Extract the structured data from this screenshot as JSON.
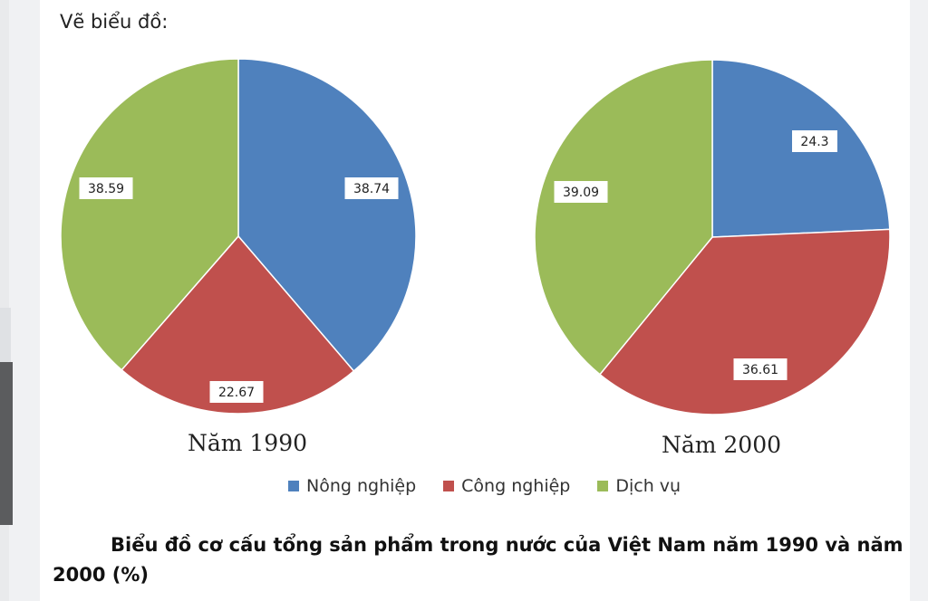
{
  "intro_text": "Vẽ biểu đồ:",
  "caption": "Biểu đồ cơ cấu tổng sản phẩm trong nước của Việt Nam năm 1990 và năm 2000 (%)",
  "legend": [
    {
      "label": "Nông nghiệp",
      "color": "#4f81bd"
    },
    {
      "label": "Công nghiệp",
      "color": "#c0504d"
    },
    {
      "label": "Dịch vụ",
      "color": "#9bbb59"
    }
  ],
  "chart_data": [
    {
      "type": "pie",
      "title": "Năm 1990",
      "categories": [
        "Nông nghiệp",
        "Công nghiệp",
        "Dịch vụ"
      ],
      "values": [
        38.74,
        22.67,
        38.59
      ],
      "labels": [
        "38.74",
        "22.67",
        "38.59"
      ],
      "colors": [
        "#4f81bd",
        "#c0504d",
        "#9bbb59"
      ],
      "start": "12 o'clock, clockwise",
      "legend": "bottom"
    },
    {
      "type": "pie",
      "title": "Năm 2000",
      "categories": [
        "Nông nghiệp",
        "Công nghiệp",
        "Dịch vụ"
      ],
      "values": [
        24.3,
        36.61,
        39.09
      ],
      "labels": [
        "24.3",
        "36.61",
        "39.09"
      ],
      "colors": [
        "#4f81bd",
        "#c0504d",
        "#9bbb59"
      ],
      "start": "12 o'clock, clockwise",
      "legend": "bottom"
    }
  ]
}
